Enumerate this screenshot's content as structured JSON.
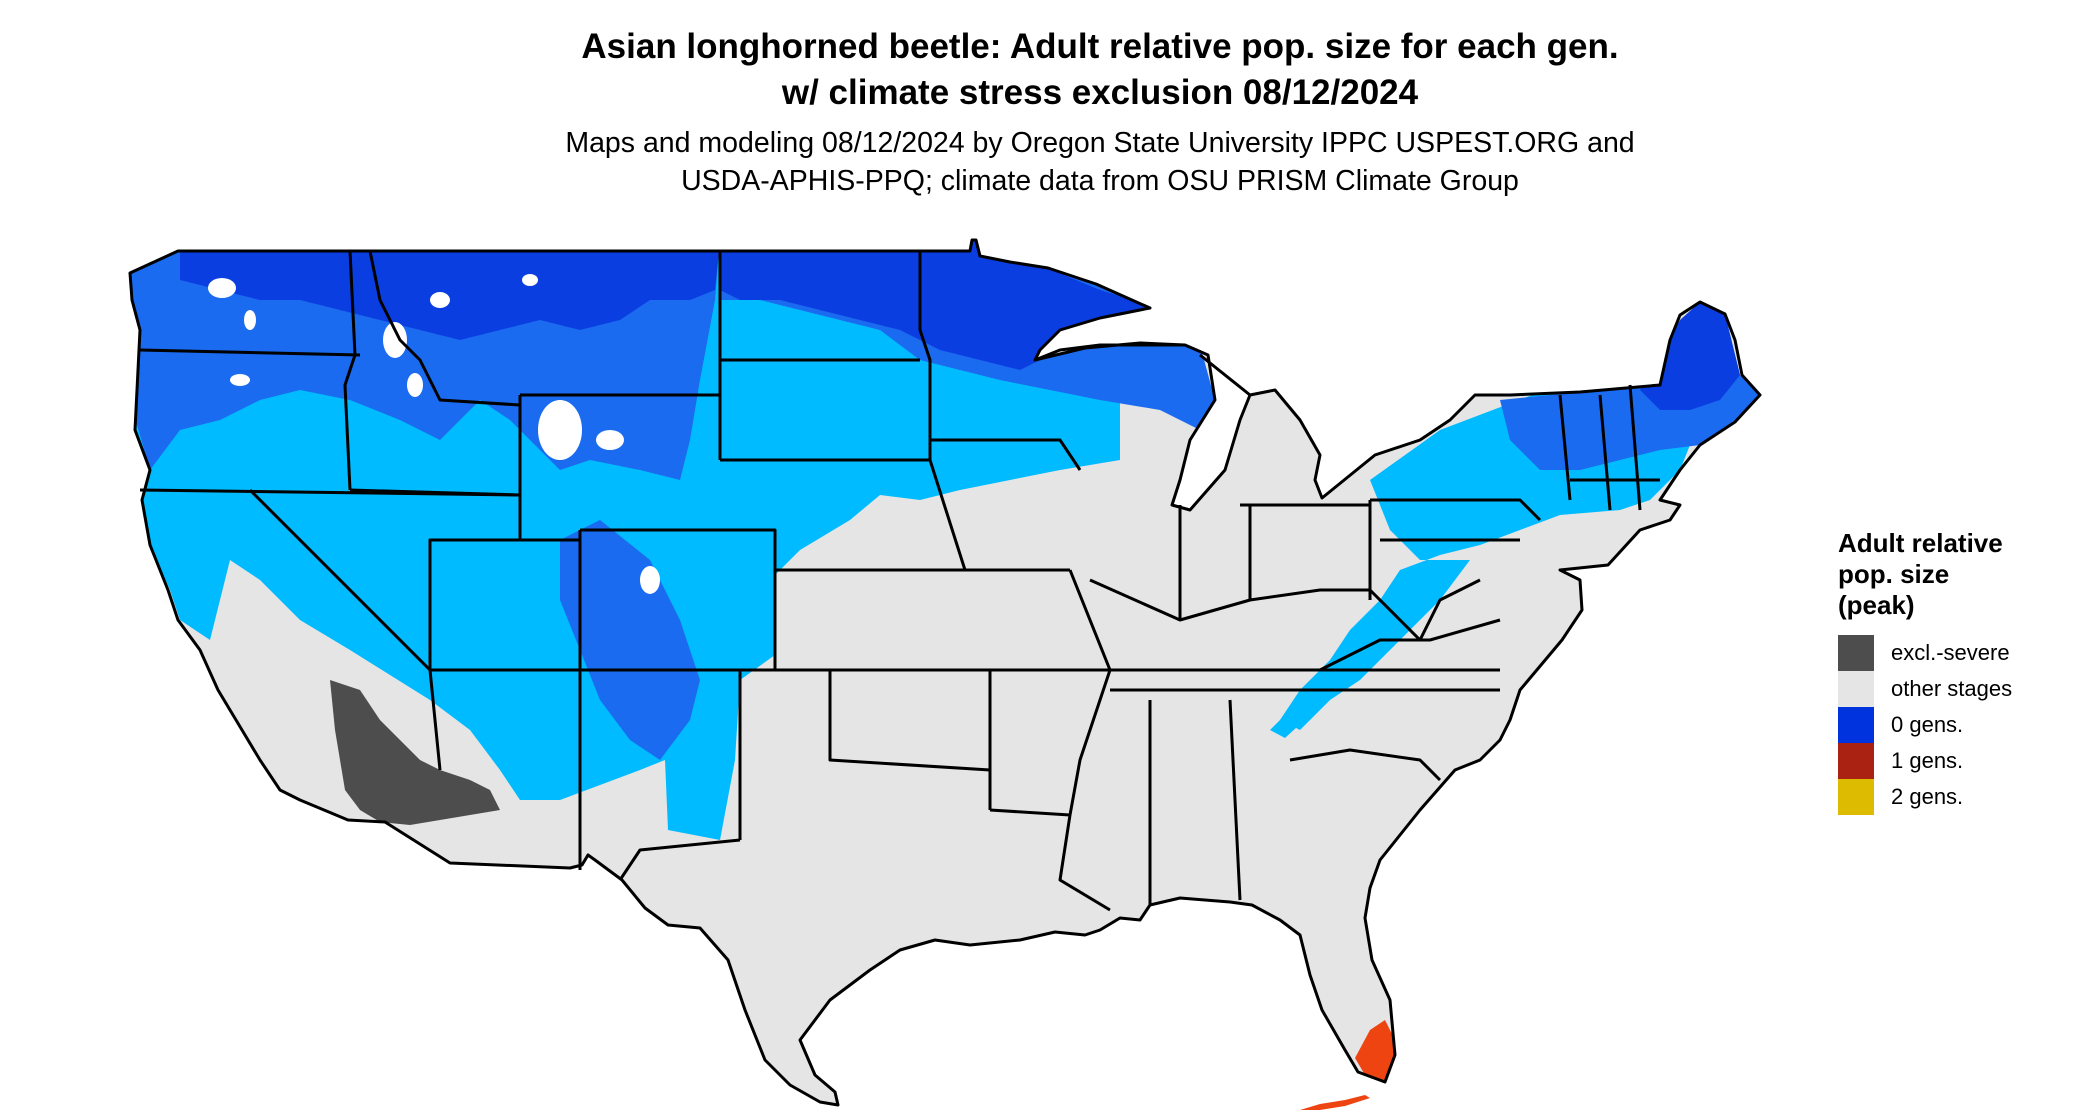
{
  "title": {
    "line1": "Asian longhorned beetle: Adult relative pop. size for each gen.",
    "line2": "w/ climate stress exclusion 08/12/2024"
  },
  "subtitle": {
    "line1": "Maps and modeling 08/12/2024 by Oregon State University IPPC USPEST.ORG and",
    "line2": "USDA-APHIS-PPQ; climate data from OSU PRISM Climate Group"
  },
  "legend": {
    "title_line1": "Adult relative",
    "title_line2": "pop. size",
    "title_line3": "(peak)",
    "items": [
      {
        "label": "excl.-severe",
        "color": "#4d4d4d"
      },
      {
        "label": "other stages",
        "color": "#e5e5e5"
      },
      {
        "label": "0 gens.",
        "color": "#0033dd"
      },
      {
        "label": "1 gens.",
        "color": "#aa2211"
      },
      {
        "label": "2 gens.",
        "color": "#ddbb00"
      }
    ]
  },
  "colors": {
    "other_stages": "#e5e5e5",
    "zero_gens_dark": "#0a3ee0",
    "zero_gens_mid": "#1a6bf0",
    "zero_gens_light": "#00bbff",
    "excluded": "#4d4d4d",
    "one_gen_tip": "#ee4411",
    "borders": "#000000"
  }
}
